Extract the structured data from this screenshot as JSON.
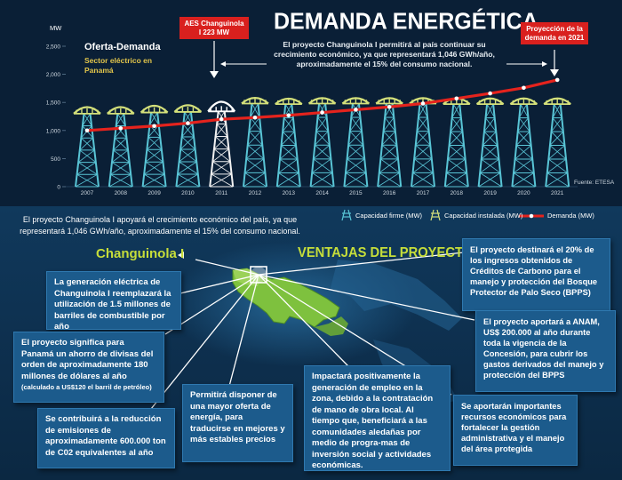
{
  "header": {
    "title": "DEMANDA ENERGÉTICA",
    "subtitle": "El proyecto Changuinola I permitirá al país continuar su crecimiento económico, ya que representará 1,046 GWh/año, aproximadamente el 15% del consumo nacional.",
    "left_title": "Oferta-Demanda",
    "left_sub": "Sector eléctrico en Panamá",
    "callout_left": "AES Changuinola I 223 MW",
    "callout_right": "Proyección de la demanda en 2021",
    "source": "Fuente: ETESA"
  },
  "chart_data": {
    "type": "line",
    "ylabel": "MW",
    "ylim": [
      0,
      2500
    ],
    "yticks": [
      0,
      500,
      1000,
      1500,
      2000,
      2500
    ],
    "ytick_labels": [
      "0",
      "500",
      "1,000",
      "1,500",
      "2,000",
      "2,500"
    ],
    "categories": [
      "2007",
      "2008",
      "2009",
      "2010",
      "2011",
      "2012",
      "2013",
      "2014",
      "2015",
      "2016",
      "2017",
      "2018",
      "2019",
      "2020",
      "2021"
    ],
    "series": [
      {
        "name": "Demanda (MW)",
        "values": [
          1000,
          1040,
          1080,
          1130,
          1200,
          1230,
          1270,
          1320,
          1370,
          1420,
          1480,
          1570,
          1660,
          1760,
          1900
        ]
      },
      {
        "name": "Capacidad firme (MW)",
        "values": [
          1300,
          1300,
          1320,
          1330,
          1340,
          1480,
          1470,
          1480,
          1480,
          1480,
          1480,
          1470,
          1470,
          1470,
          1470
        ]
      },
      {
        "name": "Capacidad instalada (MW)",
        "values": [
          1500,
          1500,
          1530,
          1540,
          1650,
          1650,
          1630,
          1640,
          1640,
          1640,
          1640,
          1640,
          1640,
          1640,
          1640
        ]
      }
    ],
    "colors": {
      "demanda": "#e5231d",
      "capacity": "#59c5d6",
      "installed": "#d4e07a"
    },
    "legend_position": "bottom-right",
    "highlight_year": "2011"
  },
  "legend": {
    "firme": "Capacidad firme (MW)",
    "instalada": "Capacidad instalada (MW)",
    "demanda": "Demanda (MW)"
  },
  "band_text": "El proyecto Changuinola I apoyará el crecimiento económico del país, ya que representará 1,046 GWh/año, aproximadamente el 15% del consumo nacional.",
  "bottom": {
    "project_label": "Changuinola I",
    "section_title": "VENTAJAS DEL PROYECTO",
    "boxes": {
      "b1": "La generación eléctrica de Changuinola I reemplazará la utilización de 1.5 millones de barriles de combustible por año",
      "b2": "El proyecto significa para Panamá un ahorro de divisas del orden de aproximadamente 180 millones de dólares al año",
      "b2_note": "(calculado a US$120 el barril de petróleo)",
      "b3": "Se contribuirá a la reducción de emisiones de aproximadamente 600.000 ton de C02 equivalentes al año",
      "b4": "Permitirá disponer de una mayor oferta de energía, para traducirse en mejores y más estables precios",
      "b5": "Impactará positivamente la generación de empleo en la zona, debido a la contratación de mano de obra local. Al tiempo que, beneficiará a las comunidades aledañas por medio de progra-mas de inversión social y actividades económicas.",
      "b6": "El proyecto destinará el 20% de los ingresos obtenidos de Créditos de Carbono para el manejo y protección del Bosque Protector de Palo Seco (BPPS)",
      "b7": "El proyecto aportará a ANAM, US$ 200.000 al año durante toda la vigencia de la Concesión, para cubrir los gastos derivados del manejo y protección del BPPS",
      "b8": "Se aportarán importantes recursos económicos para fortalecer la gestión administrativa y el manejo del área protegida"
    }
  }
}
